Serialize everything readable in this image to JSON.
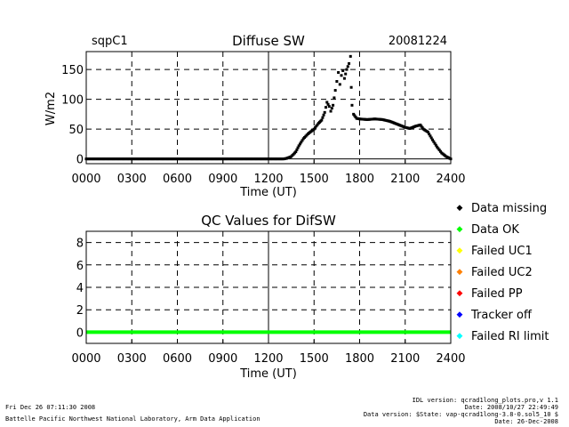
{
  "chart_data": [
    {
      "type": "scatter",
      "site_label": "sqpC1",
      "title": "Diffuse SW",
      "date_label": "20081224",
      "ylabel": "W/m2",
      "xlabel": "Time (UT)",
      "xlim": [
        0,
        24
      ],
      "ylim": [
        -8,
        180
      ],
      "grid": true,
      "x_ticks": [
        0,
        3,
        6,
        9,
        12,
        15,
        18,
        21,
        24
      ],
      "x_tick_labels": [
        "0000",
        "0300",
        "0600",
        "0900",
        "1200",
        "1500",
        "1800",
        "2100",
        "2400"
      ],
      "y_ticks": [
        0,
        50,
        100,
        150
      ],
      "y_tick_labels": [
        "0",
        "50",
        "100",
        "150"
      ],
      "series": [
        {
          "color": "#000000",
          "points": [
            [
              0,
              0
            ],
            [
              13.0,
              0
            ],
            [
              13.2,
              1
            ],
            [
              13.5,
              4
            ],
            [
              13.8,
              12
            ],
            [
              14.0,
              22
            ],
            [
              14.3,
              34
            ],
            [
              14.6,
              42
            ],
            [
              15.0,
              50
            ],
            [
              15.3,
              60
            ],
            [
              15.5,
              65
            ],
            [
              15.7,
              78
            ],
            [
              15.85,
              95
            ],
            [
              16.0,
              88
            ],
            [
              16.1,
              80
            ],
            [
              16.25,
              90
            ],
            [
              16.4,
              115
            ],
            [
              16.5,
              130
            ],
            [
              16.6,
              145
            ],
            [
              16.7,
              125
            ],
            [
              16.8,
              140
            ],
            [
              16.9,
              148
            ],
            [
              17.0,
              135
            ],
            [
              17.15,
              150
            ],
            [
              17.3,
              160
            ],
            [
              17.4,
              172
            ],
            [
              17.45,
              120
            ],
            [
              17.5,
              90
            ],
            [
              17.6,
              75
            ],
            [
              17.8,
              68
            ],
            [
              18.0,
              67
            ],
            [
              18.5,
              66
            ],
            [
              19.0,
              67
            ],
            [
              19.5,
              66
            ],
            [
              20.0,
              63
            ],
            [
              20.5,
              58
            ],
            [
              21.0,
              53
            ],
            [
              21.3,
              51
            ],
            [
              21.7,
              55
            ],
            [
              22.0,
              57
            ],
            [
              22.2,
              50
            ],
            [
              22.5,
              45
            ],
            [
              22.8,
              32
            ],
            [
              23.1,
              20
            ],
            [
              23.4,
              10
            ],
            [
              23.7,
              4
            ],
            [
              24.0,
              0
            ]
          ]
        }
      ]
    },
    {
      "type": "line",
      "title": "QC Values for DifSW",
      "xlabel": "Time (UT)",
      "xlim": [
        0,
        24
      ],
      "ylim": [
        -1,
        9
      ],
      "grid": true,
      "x_ticks": [
        0,
        3,
        6,
        9,
        12,
        15,
        18,
        21,
        24
      ],
      "x_tick_labels": [
        "0000",
        "0300",
        "0600",
        "0900",
        "1200",
        "1500",
        "1800",
        "2100",
        "2400"
      ],
      "y_ticks": [
        0,
        2,
        4,
        6,
        8
      ],
      "y_tick_labels": [
        "0",
        "2",
        "4",
        "6",
        "8"
      ],
      "series": [
        {
          "color": "#00ff00",
          "x": [
            0,
            24
          ],
          "values": [
            0,
            0
          ]
        }
      ]
    }
  ],
  "legend": [
    {
      "label": "Data missing",
      "color": "#000000"
    },
    {
      "label": "Data OK",
      "color": "#00ff00"
    },
    {
      "label": "Failed UC1",
      "color": "#ffff00"
    },
    {
      "label": "Failed UC2",
      "color": "#ff8000"
    },
    {
      "label": "Failed PP",
      "color": "#ff0000"
    },
    {
      "label": "Tracker off",
      "color": "#0000ff"
    },
    {
      "label": "Failed RI limit",
      "color": "#00ffff"
    }
  ],
  "footer": {
    "left_line1": "Fri Dec 26 07:11:30 2008",
    "left_line2": "Battelle Pacific Northwest National Laboratory, Arm Data Application",
    "right_line1": "IDL version: qcrad1long_plots.pro,v 1.1",
    "right_line2": "Date: 2008/10/27 22:49:49",
    "right_line3": "Data version: $State: vap-qcrad1long-3.8-0.sol5_10 $",
    "right_line4": "Date: 26-Dec-2008"
  }
}
